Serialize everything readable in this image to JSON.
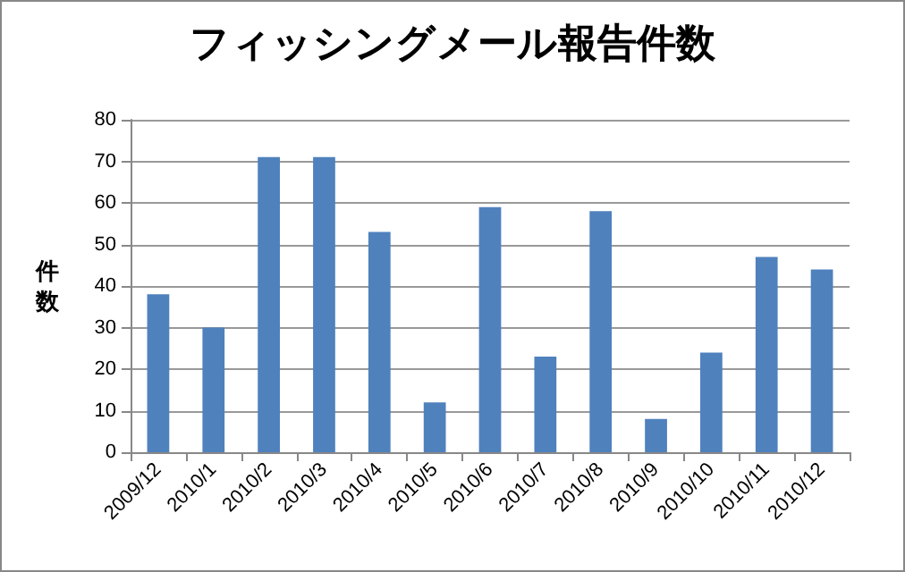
{
  "chart_data": {
    "type": "bar",
    "title": "フィッシングメール報告件数",
    "ylabel": "件数",
    "categories": [
      "2009/12",
      "2010/1",
      "2010/2",
      "2010/3",
      "2010/4",
      "2010/5",
      "2010/6",
      "2010/7",
      "2010/8",
      "2010/9",
      "2010/10",
      "2010/11",
      "2010/12"
    ],
    "values": [
      38,
      30,
      71,
      71,
      53,
      12,
      59,
      23,
      58,
      8,
      24,
      47,
      44
    ],
    "color": "#4f81bd",
    "ylim": [
      0,
      80
    ],
    "yticks": [
      0,
      10,
      20,
      30,
      40,
      50,
      60,
      70,
      80
    ],
    "grid": "y"
  }
}
